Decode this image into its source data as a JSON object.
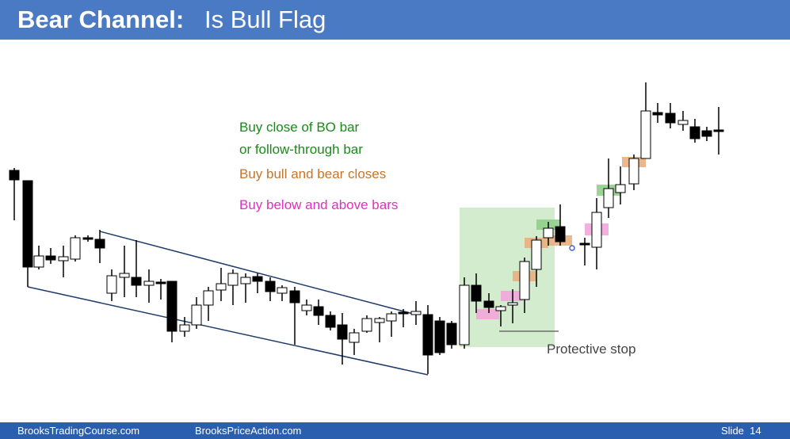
{
  "header": {
    "title_bold": "Bear Channel:",
    "title_rest": "Is Bull Flag"
  },
  "annotations": {
    "buy_bo": [
      "Buy close of BO bar",
      "or follow-through bar"
    ],
    "buy_closes": "Buy bull and bear closes",
    "buy_bars": "Buy below and above bars",
    "stop": "Protective stop"
  },
  "footer": {
    "left": "BrooksTradingCourse.com",
    "center": "BrooksPriceAction.com",
    "slide": "Slide  14"
  }
}
